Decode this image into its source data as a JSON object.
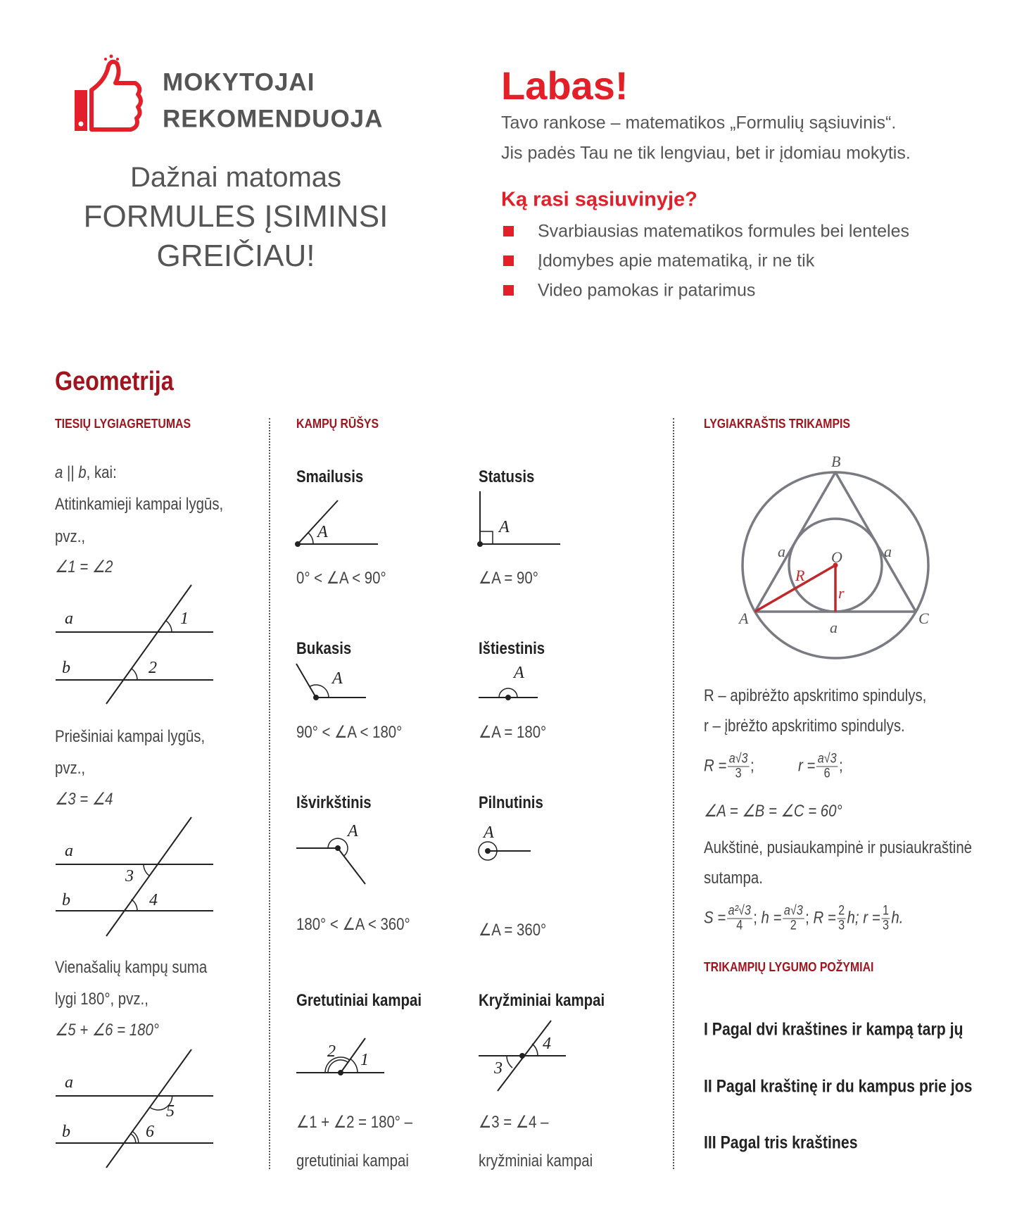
{
  "header": {
    "logo": {
      "line1": "MOKYTOJAI",
      "line2": "REKOMENDUOJA",
      "icon": "thumbs-up-icon"
    },
    "slogan": {
      "line1": "Dažnai matomas",
      "line2": "FORMULES ĮSIMINSI",
      "line3": "GREIČIAU!"
    },
    "greeting": "Labas!",
    "intro_line1": "Tavo rankose – matematikos „Formulių sąsiuvinis“.",
    "intro_line2": "Jis padės Tau ne tik lengviau, bet ir įdomiau mokytis.",
    "question": "Ką rasi sąsiuvinyje?",
    "bullets": [
      "Svarbiausias matematikos formules bei lenteles",
      "Įdomybes apie matematiką, ir ne tik",
      "Video pamokas ir patarimus"
    ]
  },
  "colors": {
    "accent_red": "#e3202a",
    "section_red": "#a0141e",
    "text": "#444444",
    "diagram_gray": "#7a7a82"
  },
  "section_title": "Geometrija",
  "parallel": {
    "heading": "TIESIŲ LYGIAGRETUMAS",
    "cond_a": "a",
    "cond_sep": " || ",
    "cond_b": "b",
    "cond_rest": ", kai:",
    "rule1": "Atitinkamieji kampai lygūs,",
    "ex1": "pvz.,",
    "formula1": "∠1 = ∠2",
    "rule2": "Priešiniai kampai lygūs,",
    "ex2": "pvz.,",
    "formula2": "∠3 = ∠4",
    "rule3": "Vienašalių kampų suma",
    "rule3b": "lygi 180°, pvz.,",
    "formula3": "∠5 + ∠6 = 180°",
    "line_a": "a",
    "line_b": "b",
    "angles": [
      "1",
      "2",
      "3",
      "4",
      "5",
      "6"
    ]
  },
  "angle_types": {
    "heading": "KAMPŲ RŪŠYS",
    "vertex": "A",
    "items": [
      {
        "name": "Smailusis",
        "formula": "0° < ∠A < 90°"
      },
      {
        "name": "Statusis",
        "formula": "∠A = 90°"
      },
      {
        "name": "Bukasis",
        "formula": "90° < ∠A < 180°"
      },
      {
        "name": "Ištiestinis",
        "formula": "∠A = 180°"
      },
      {
        "name": "Išvirkštinis",
        "formula": "180° < ∠A < 360°"
      },
      {
        "name": "Pilnutinis",
        "formula": "∠A = 360°"
      }
    ],
    "adjacent": {
      "name": "Gretutiniai kampai",
      "formula": "∠1 + ∠2 = 180° –",
      "note": "gretutiniai kampai",
      "l1": "1",
      "l2": "2"
    },
    "vertical": {
      "name": "Kryžminiai kampai",
      "formula": "∠3 = ∠4 –",
      "note": "kryžminiai kampai",
      "l3": "3",
      "l4": "4"
    }
  },
  "equilateral": {
    "heading": "LYGIAKRAŠTIS TRIKAMPIS",
    "labels": {
      "A": "A",
      "B": "B",
      "C": "C",
      "O": "O",
      "R": "R",
      "r": "r",
      "side": "a"
    },
    "def_R": "R – apibrėžto apskritimo spindulys,",
    "def_r": "r – įbrėžto apskritimo spindulys.",
    "f_R": {
      "lhs": "R =",
      "num": "a√3",
      "den": "3",
      "end": ";"
    },
    "f_r": {
      "lhs": "r =",
      "num": "a√3",
      "den": "6",
      "end": ";"
    },
    "angles": "∠A = ∠B = ∠C = 60°",
    "note1": "Aukštinė, pusiaukampinė ir pusiaukraštinė",
    "note2": "sutampa.",
    "f_S": {
      "lhs": "S =",
      "num": "a²√3",
      "den": "4",
      "end": ";"
    },
    "f_h": {
      "lhs": "h =",
      "num": "a√3",
      "den": "2",
      "end": ";"
    },
    "f_R2": {
      "lhs": "R =",
      "num": "2",
      "den": "3",
      "end": "h;"
    },
    "f_r2": {
      "lhs": "r =",
      "num": "1",
      "den": "3",
      "end": "h."
    }
  },
  "congruence": {
    "heading": "TRIKAMPIŲ LYGUMO POŽYMIAI",
    "criteria": [
      "I  Pagal dvi kraštines ir kampą tarp jų",
      "II Pagal kraštinę ir du kampus prie jos",
      "III Pagal tris kraštines"
    ]
  }
}
